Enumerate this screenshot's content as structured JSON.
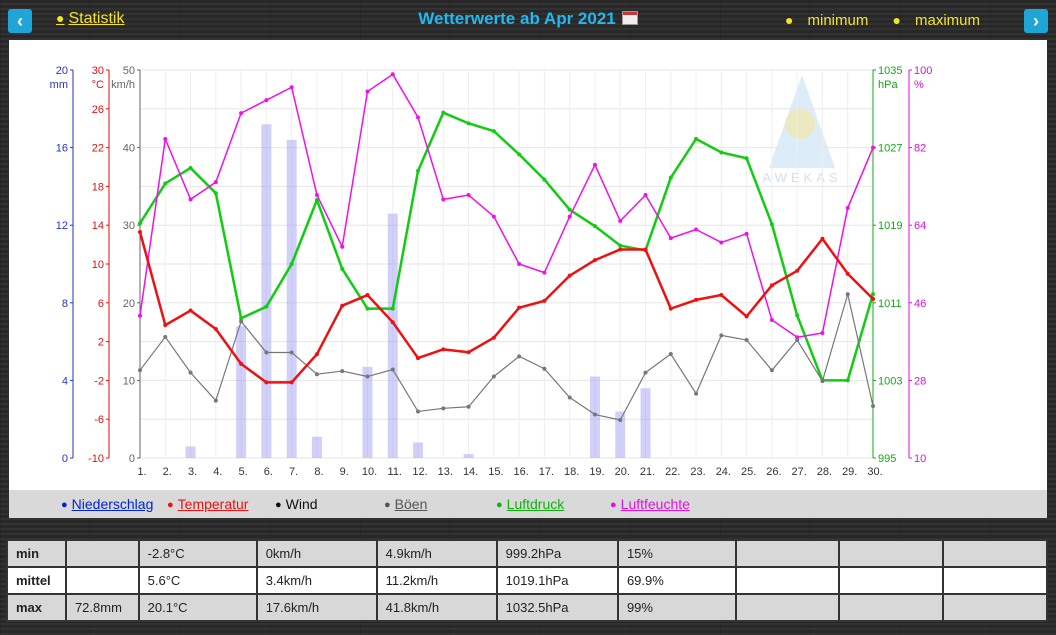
{
  "nav": {
    "prev_icon": "‹",
    "next_icon": "›"
  },
  "header": {
    "statistik": "Statistik",
    "title": "Wetterwerte ab Apr 2021",
    "minimum": "minimum",
    "maximum": "maximum"
  },
  "legend": [
    {
      "label": "Niederschlag",
      "color": "#0022dd",
      "underline": true
    },
    {
      "label": "Temperatur",
      "color": "#e11",
      "underline": true
    },
    {
      "label": "Wind",
      "color": "#111",
      "underline": false
    },
    {
      "label": "Böen",
      "color": "#555",
      "underline": true
    },
    {
      "label": "Luftdruck",
      "color": "#11b011",
      "underline": true
    },
    {
      "label": "Luftfeuchte",
      "color": "#e011e0",
      "underline": true
    }
  ],
  "watermark": "AWEKAS",
  "axes": {
    "mm": {
      "unit": "mm",
      "ticks": [
        "20",
        "16",
        "12",
        "8",
        "4",
        "0"
      ],
      "color": "#2233cc"
    },
    "temp": {
      "unit": "°C",
      "ticks": [
        "30",
        "26",
        "22",
        "18",
        "14",
        "10",
        "6",
        "2",
        "-2",
        "-6",
        "-10"
      ],
      "color": "#dd1111"
    },
    "wind": {
      "unit": "km/h",
      "ticks": [
        "50",
        "40",
        "30",
        "20",
        "10",
        "0"
      ],
      "color": "#666666"
    },
    "hpa": {
      "unit": "hPa",
      "ticks": [
        "1035",
        "1027",
        "1019",
        "1011",
        "1003",
        "995"
      ],
      "color": "#11aa11"
    },
    "pct": {
      "unit": "%",
      "ticks": [
        "100",
        "82",
        "64",
        "46",
        "28",
        "10"
      ],
      "color": "#dd11dd"
    }
  },
  "chart_data": {
    "type": "line",
    "x": [
      "1.",
      "2.",
      "3.",
      "4.",
      "5.",
      "6.",
      "7.",
      "8.",
      "9.",
      "10.",
      "11.",
      "12.",
      "13.",
      "14.",
      "15.",
      "16.",
      "17.",
      "18.",
      "19.",
      "20.",
      "21.",
      "22.",
      "23.",
      "24.",
      "25.",
      "26.",
      "27.",
      "28.",
      "29.",
      "30."
    ],
    "series": [
      {
        "name": "Niederschlag",
        "unit": "mm",
        "kind": "bar",
        "values": [
          0,
          0,
          0.6,
          0,
          6.8,
          17.2,
          16.4,
          1.1,
          0,
          4.7,
          12.6,
          0.8,
          0,
          0.2,
          0,
          0,
          0,
          0,
          4.2,
          2.4,
          3.6,
          0,
          0,
          0,
          0,
          0,
          0,
          0,
          0,
          0
        ]
      },
      {
        "name": "Temperatur",
        "unit": "°C",
        "values": [
          13.3,
          3.7,
          5.2,
          3.3,
          -0.3,
          -2.2,
          -2.2,
          0.7,
          5.7,
          6.8,
          4.0,
          0.3,
          1.2,
          0.9,
          2.4,
          5.5,
          6.2,
          8.8,
          10.4,
          11.5,
          11.5,
          5.4,
          6.3,
          6.8,
          4.6,
          7.8,
          9.3,
          12.6,
          9.0,
          6.4
        ]
      },
      {
        "name": "Wind",
        "unit": "km/h",
        "values": [
          11.3,
          15.6,
          11.0,
          7.4,
          17.6,
          13.6,
          13.6,
          10.8,
          11.2,
          10.5,
          11.4,
          6.0,
          6.4,
          6.6,
          10.5,
          13.1,
          11.5,
          7.8,
          5.6,
          4.9,
          11.0,
          13.4,
          8.3,
          15.8,
          15.2,
          11.3,
          15.2,
          9.9,
          21.1,
          6.7
        ]
      },
      {
        "name": "Luftdruck",
        "unit": "hPa",
        "values": [
          1019.2,
          1023.3,
          1024.9,
          1022.3,
          1009.4,
          1010.6,
          1015.0,
          1021.6,
          1014.5,
          1010.4,
          1010.4,
          1024.6,
          1030.6,
          1029.5,
          1028.7,
          1026.3,
          1023.7,
          1020.6,
          1018.9,
          1016.9,
          1016.4,
          1023.9,
          1027.9,
          1026.5,
          1025.9,
          1019.1,
          1009.7,
          1003.0,
          1003.0,
          1011.9
        ]
      },
      {
        "name": "Luftfeuchte",
        "unit": "%",
        "values": [
          43,
          84,
          70,
          74,
          90,
          93,
          96,
          71,
          59,
          95,
          99,
          89,
          70,
          71,
          66,
          55,
          53,
          66,
          78,
          65,
          71,
          61,
          63,
          60,
          62,
          42,
          38,
          39,
          68,
          82
        ]
      }
    ],
    "ylim": {
      "mm": [
        0,
        20
      ],
      "temp": [
        -10,
        30
      ],
      "wind": [
        0,
        50
      ],
      "hpa": [
        995,
        1035
      ],
      "pct": [
        10,
        100
      ]
    }
  },
  "stats": {
    "rows": [
      {
        "label": "min",
        "cells": [
          "",
          "-2.8°C",
          "0km/h",
          "4.9km/h",
          "999.2hPa",
          "15%",
          "",
          "",
          ""
        ]
      },
      {
        "label": "mittel",
        "cells": [
          "",
          "5.6°C",
          "3.4km/h",
          "11.2km/h",
          "1019.1hPa",
          "69.9%",
          "",
          "",
          ""
        ]
      },
      {
        "label": "max",
        "cells": [
          "72.8mm",
          "20.1°C",
          "17.6km/h",
          "41.8km/h",
          "1032.5hPa",
          "99%",
          "",
          "",
          ""
        ]
      }
    ]
  }
}
